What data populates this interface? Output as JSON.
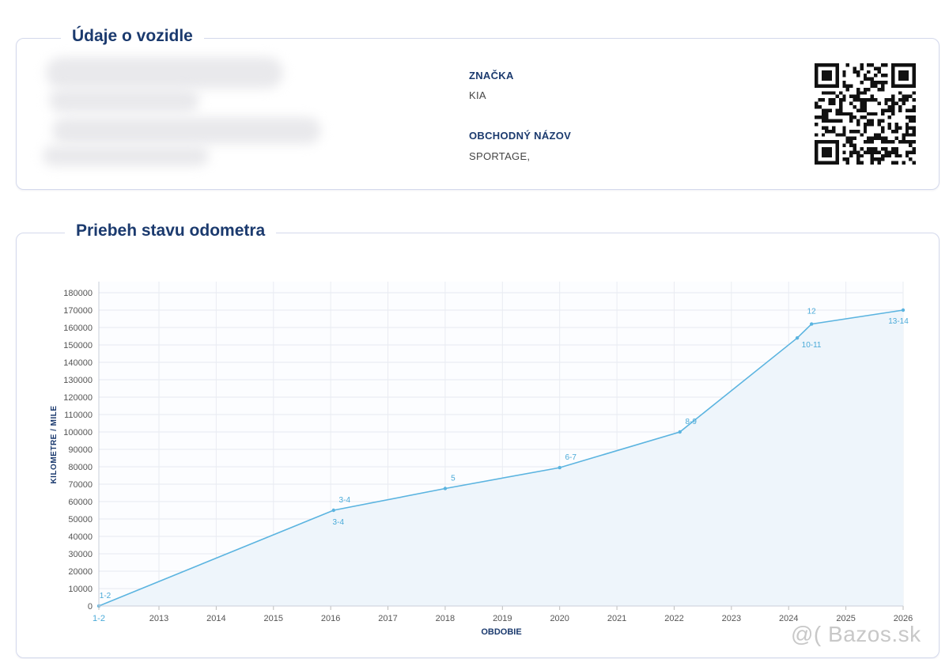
{
  "vehicle": {
    "title": "Údaje o vozidle",
    "brand_label": "ZNAČKA",
    "brand_value": "KIA",
    "trade_name_label": "OBCHODNÝ NÁZOV",
    "trade_name_value": "SPORTAGE,"
  },
  "odometer": {
    "title": "Priebeh stavu odometra"
  },
  "chart_data": {
    "type": "area",
    "xlabel": "OBDOBIE",
    "ylabel": "KILOMETRE / MILE",
    "xlim": [
      2012.0,
      2026.05
    ],
    "ylim": [
      0,
      180000
    ],
    "grid": true,
    "x_tick_labels": [
      "1-2",
      "2013",
      "2014",
      "2015",
      "2016",
      "2017",
      "2018",
      "2019",
      "2020",
      "2021",
      "2022",
      "2023",
      "2024",
      "2025",
      "2026"
    ],
    "y_tick_values": [
      0,
      10000,
      20000,
      30000,
      40000,
      50000,
      60000,
      70000,
      80000,
      90000,
      100000,
      110000,
      120000,
      130000,
      140000,
      150000,
      160000,
      170000,
      180000
    ],
    "series": [
      {
        "points": [
          {
            "x": 2012.0,
            "y": 0
          },
          {
            "x": 2016.1,
            "y": 55000
          },
          {
            "x": 2018.05,
            "y": 67500
          },
          {
            "x": 2020.05,
            "y": 79500
          },
          {
            "x": 2022.15,
            "y": 100000
          },
          {
            "x": 2024.2,
            "y": 154000
          },
          {
            "x": 2024.45,
            "y": 162000
          },
          {
            "x": 2026.05,
            "y": 170000
          }
        ]
      }
    ],
    "annotations": [
      {
        "label": "1-2",
        "x": 2012.0,
        "y": 0
      },
      {
        "label": "3-4",
        "x": 2016.1,
        "y": 55000
      },
      {
        "label": "5",
        "x": 2018.05,
        "y": 67500
      },
      {
        "label": "6-7",
        "x": 2020.05,
        "y": 79500
      },
      {
        "label": "8-9",
        "x": 2022.15,
        "y": 100000
      },
      {
        "label": "10-11",
        "x": 2024.2,
        "y": 154000
      },
      {
        "label": "12",
        "x": 2024.45,
        "y": 162000
      },
      {
        "label": "13-14",
        "x": 2026.05,
        "y": 170000
      }
    ],
    "colors": {
      "line": "#5bb4e0",
      "fill": "#eef5fb",
      "label": "#4aaad8",
      "axis_text": "#555555",
      "axis_title": "#1b3a6e"
    }
  },
  "watermark": {
    "text": "@( Bazos.sk"
  },
  "icons": {
    "qr": "qr-code"
  }
}
